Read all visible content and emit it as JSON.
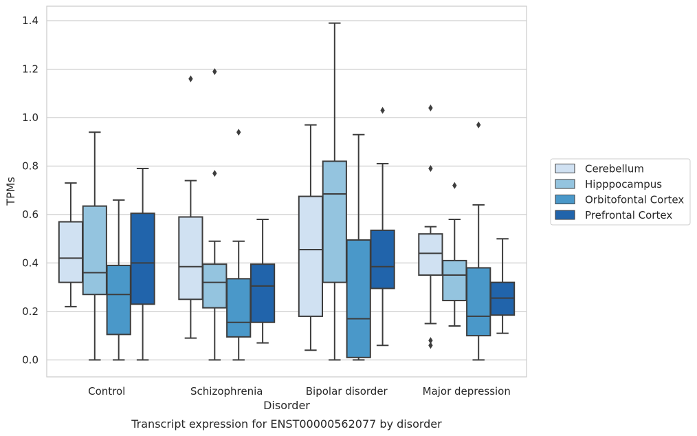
{
  "chart_data": {
    "type": "boxplot",
    "caption": "Transcript expression for ENST00000562077 by disorder",
    "xlabel": "Disorder",
    "ylabel": "TPMs",
    "ylim": [
      -0.07,
      1.46
    ],
    "y_ticks": [
      "0.0",
      "0.2",
      "0.4",
      "0.6",
      "0.8",
      "1.0",
      "1.2",
      "1.4"
    ],
    "grid": true,
    "legend_position": "right",
    "categories": [
      "Control",
      "Schizophrenia",
      "Bipolar disorder",
      "Major depression"
    ],
    "series": [
      {
        "name": "Cerebellum",
        "color": "#d0e1f2",
        "boxes": [
          {
            "whislo": 0.22,
            "q1": 0.32,
            "med": 0.42,
            "q3": 0.57,
            "whishi": 0.73,
            "fliers": []
          },
          {
            "whislo": 0.09,
            "q1": 0.25,
            "med": 0.385,
            "q3": 0.59,
            "whishi": 0.74,
            "fliers": [
              1.16
            ]
          },
          {
            "whislo": 0.04,
            "q1": 0.18,
            "med": 0.455,
            "q3": 0.675,
            "whishi": 0.97,
            "fliers": []
          },
          {
            "whislo": 0.15,
            "q1": 0.35,
            "med": 0.44,
            "q3": 0.52,
            "whishi": 0.55,
            "fliers": [
              1.04,
              0.79,
              0.08,
              0.06
            ]
          }
        ]
      },
      {
        "name": "Hipppocampus",
        "color": "#94c4df",
        "boxes": [
          {
            "whislo": 0.0,
            "q1": 0.27,
            "med": 0.36,
            "q3": 0.635,
            "whishi": 0.94,
            "fliers": []
          },
          {
            "whislo": 0.0,
            "q1": 0.215,
            "med": 0.32,
            "q3": 0.395,
            "whishi": 0.49,
            "fliers": [
              1.19,
              0.77
            ]
          },
          {
            "whislo": 0.0,
            "q1": 0.32,
            "med": 0.685,
            "q3": 0.82,
            "whishi": 1.39,
            "fliers": []
          },
          {
            "whislo": 0.14,
            "q1": 0.245,
            "med": 0.35,
            "q3": 0.41,
            "whishi": 0.58,
            "fliers": [
              0.72
            ]
          }
        ]
      },
      {
        "name": "Orbitofontal Cortex",
        "color": "#4a98c9",
        "boxes": [
          {
            "whislo": 0.0,
            "q1": 0.105,
            "med": 0.27,
            "q3": 0.39,
            "whishi": 0.66,
            "fliers": []
          },
          {
            "whislo": 0.0,
            "q1": 0.095,
            "med": 0.155,
            "q3": 0.335,
            "whishi": 0.49,
            "fliers": [
              0.94
            ]
          },
          {
            "whislo": 0.0,
            "q1": 0.01,
            "med": 0.17,
            "q3": 0.495,
            "whishi": 0.93,
            "fliers": []
          },
          {
            "whislo": 0.0,
            "q1": 0.1,
            "med": 0.18,
            "q3": 0.38,
            "whishi": 0.64,
            "fliers": [
              0.97
            ]
          }
        ]
      },
      {
        "name": "Prefrontal Cortex",
        "color": "#2164ab",
        "boxes": [
          {
            "whislo": 0.0,
            "q1": 0.23,
            "med": 0.4,
            "q3": 0.605,
            "whishi": 0.79,
            "fliers": []
          },
          {
            "whislo": 0.07,
            "q1": 0.155,
            "med": 0.305,
            "q3": 0.395,
            "whishi": 0.58,
            "fliers": []
          },
          {
            "whislo": 0.06,
            "q1": 0.295,
            "med": 0.385,
            "q3": 0.535,
            "whishi": 0.81,
            "fliers": [
              1.03
            ]
          },
          {
            "whislo": 0.11,
            "q1": 0.185,
            "med": 0.255,
            "q3": 0.32,
            "whishi": 0.5,
            "fliers": []
          }
        ]
      }
    ]
  }
}
